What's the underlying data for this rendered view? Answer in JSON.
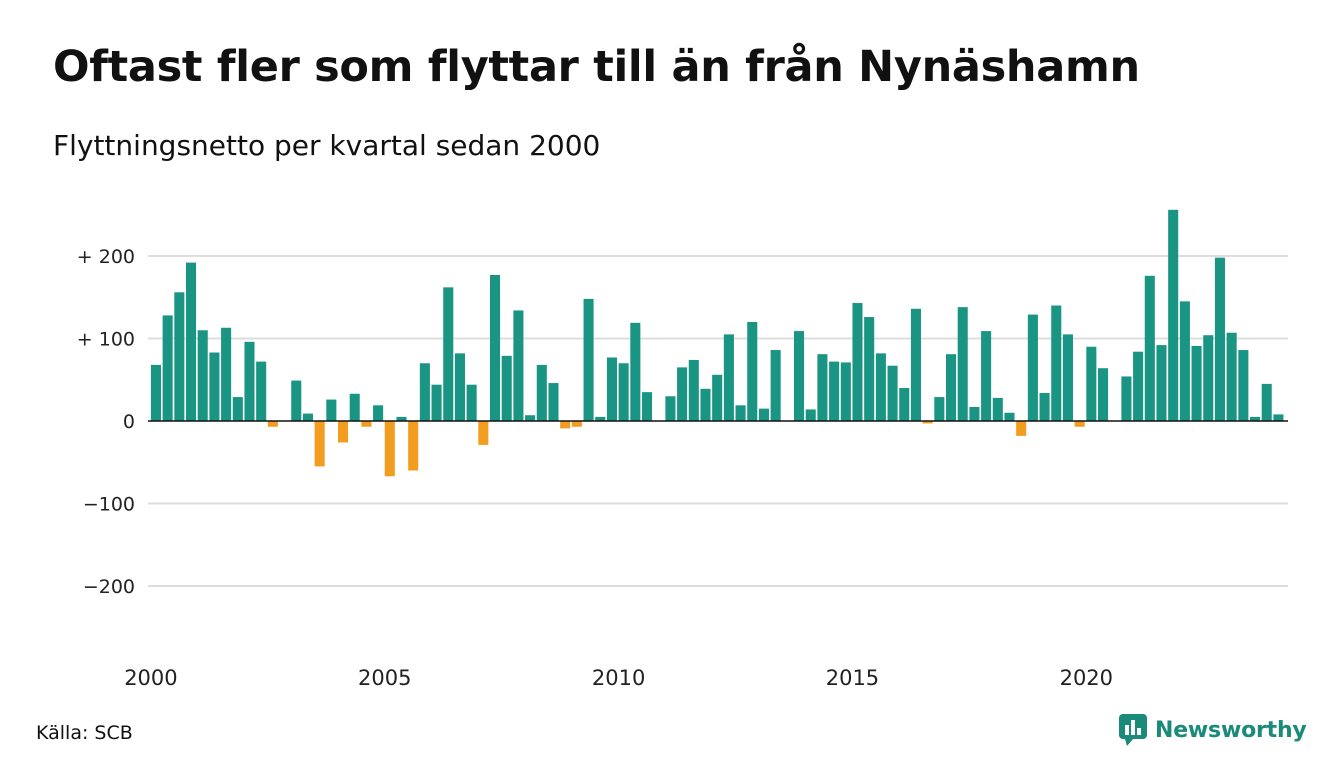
{
  "title": "Oftast fler som flyttar till än från Nynäshamn",
  "subtitle": "Flyttningsnetto per kvartal sedan 2000",
  "source": "Källa: SCB",
  "brand": "Newsworthy",
  "colors": {
    "positive": "#1a9584",
    "negative": "#f29d1f",
    "grid": "#dddddd",
    "zero": "#111111",
    "brand": "#1a8a7a"
  },
  "chart_data": {
    "type": "bar",
    "title": "Oftast fler som flyttar till än från Nynäshamn",
    "subtitle": "Flyttningsnetto per kvartal sedan 2000",
    "xlabel": "",
    "ylabel": "",
    "ylim": [
      -240,
      260
    ],
    "y_ticks": [
      200,
      100,
      0,
      -100,
      -200
    ],
    "y_tick_labels": [
      "+ 200",
      "+ 100",
      "0",
      "−100",
      "−200"
    ],
    "x_tick_labels": [
      "2000",
      "2005",
      "2010",
      "2015",
      "2020"
    ],
    "first_period": "2000 Q1",
    "period": "quarter",
    "grid": true,
    "values": [
      68,
      128,
      156,
      192,
      110,
      83,
      113,
      29,
      96,
      72,
      -7,
      0,
      49,
      9,
      -55,
      26,
      -26,
      33,
      -7,
      19,
      -67,
      5,
      -60,
      70,
      44,
      162,
      82,
      44,
      -29,
      177,
      79,
      134,
      7,
      68,
      46,
      -9,
      -7,
      148,
      5,
      77,
      70,
      119,
      35,
      0,
      30,
      65,
      74,
      39,
      56,
      105,
      19,
      120,
      15,
      86,
      0,
      109,
      14,
      81,
      72,
      71,
      143,
      126,
      82,
      67,
      40,
      136,
      -3,
      29,
      81,
      138,
      17,
      109,
      28,
      10,
      -18,
      129,
      34,
      140,
      105,
      -7,
      90,
      64,
      0,
      54,
      84,
      176,
      92,
      256,
      145,
      91,
      104,
      198,
      107,
      86,
      5,
      45,
      8
    ]
  }
}
